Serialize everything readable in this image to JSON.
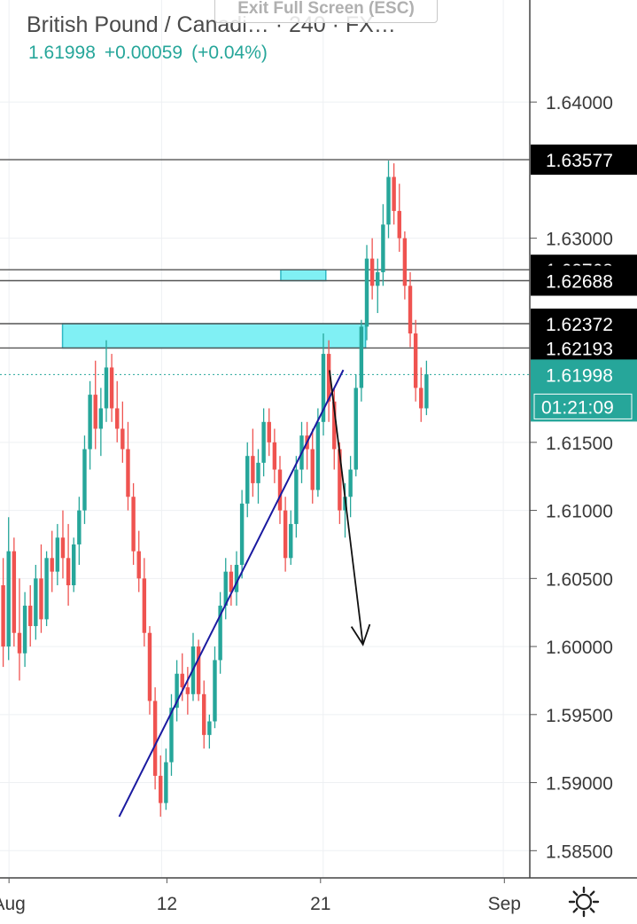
{
  "header": {
    "title": "British Pound / Canadi…  · 240 · FX…",
    "last_price": "1.61998",
    "change": "+0.00059",
    "change_pct": "(+0.04%)",
    "exit_fullscreen": "Exit Full Screen (ESC)"
  },
  "colors": {
    "up": "#26a69a",
    "down": "#ef5350",
    "zone": "#80f0f4",
    "trendline": "#1a1aa0",
    "hline": "#555555",
    "price_tag": "#000000",
    "current_tag": "#26a69a"
  },
  "icons": {
    "settings": "gear-icon"
  },
  "chart_data": {
    "type": "candlestick",
    "timeframe": "240",
    "price_axis": {
      "range": [
        1.583,
        1.6475
      ],
      "ticks": [
        "1.64000",
        "1.63000",
        "1.61500",
        "1.61000",
        "1.60500",
        "1.60000",
        "1.59500",
        "1.59000",
        "1.58500"
      ]
    },
    "time_axis": {
      "labels": [
        "Aug",
        "12",
        "21",
        "Sep"
      ]
    },
    "horizontal_lines": [
      {
        "price": 1.63577,
        "label": "1.63577"
      },
      {
        "price": 1.62768,
        "label": "1.62768"
      },
      {
        "price": 1.62688,
        "label": "1.62688"
      },
      {
        "price": 1.62372,
        "label": "1.62372"
      },
      {
        "price": 1.62193,
        "label": "1.62193"
      }
    ],
    "current_price": {
      "price": 1.61998,
      "label": "1.61998",
      "countdown": "01:21:09"
    },
    "zones": [
      {
        "x_start": 0.118,
        "x_end": 0.69,
        "top": 1.62372,
        "bottom": 1.62193
      },
      {
        "x_start": 0.53,
        "x_end": 0.615,
        "top": 1.62768,
        "bottom": 1.62688
      }
    ],
    "trendline": {
      "from": {
        "x": 0.225,
        "price": 1.5875
      },
      "to": {
        "x": 0.648,
        "price": 1.62032
      }
    },
    "arrow": {
      "from": {
        "x": 0.622,
        "price": 1.6203
      },
      "to": {
        "x": 0.685,
        "price": 1.60015
      }
    },
    "candles": [
      [
        1.6045,
        1.6065,
        1.5985,
        1.6
      ],
      [
        1.6,
        1.6095,
        1.599,
        1.607
      ],
      [
        1.607,
        1.608,
        1.6,
        1.601
      ],
      [
        1.601,
        1.605,
        1.5975,
        1.5995
      ],
      [
        1.5995,
        1.604,
        1.5985,
        1.603
      ],
      [
        1.603,
        1.6045,
        1.6,
        1.6015
      ],
      [
        1.6015,
        1.606,
        1.6005,
        1.605
      ],
      [
        1.605,
        1.6075,
        1.601,
        1.602
      ],
      [
        1.602,
        1.607,
        1.6015,
        1.6065
      ],
      [
        1.6065,
        1.6085,
        1.604,
        1.6055
      ],
      [
        1.6055,
        1.609,
        1.6045,
        1.608
      ],
      [
        1.608,
        1.61,
        1.605,
        1.6065
      ],
      [
        1.6065,
        1.609,
        1.603,
        1.6045
      ],
      [
        1.6045,
        1.608,
        1.604,
        1.6075
      ],
      [
        1.6075,
        1.611,
        1.606,
        1.61
      ],
      [
        1.61,
        1.6155,
        1.609,
        1.6145
      ],
      [
        1.6145,
        1.6195,
        1.613,
        1.6185
      ],
      [
        1.6185,
        1.621,
        1.6145,
        1.616
      ],
      [
        1.616,
        1.619,
        1.614,
        1.6175
      ],
      [
        1.6175,
        1.6225,
        1.6165,
        1.6205
      ],
      [
        1.6205,
        1.6215,
        1.6165,
        1.6175
      ],
      [
        1.6175,
        1.6195,
        1.615,
        1.616
      ],
      [
        1.616,
        1.618,
        1.6135,
        1.6145
      ],
      [
        1.6145,
        1.6165,
        1.61,
        1.611
      ],
      [
        1.611,
        1.612,
        1.606,
        1.607
      ],
      [
        1.607,
        1.6085,
        1.604,
        1.605
      ],
      [
        1.605,
        1.6065,
        1.6,
        1.601
      ],
      [
        1.601,
        1.6015,
        1.595,
        1.596
      ],
      [
        1.596,
        1.597,
        1.5895,
        1.5905
      ],
      [
        1.5905,
        1.592,
        1.5875,
        1.5885
      ],
      [
        1.5885,
        1.5925,
        1.588,
        1.5915
      ],
      [
        1.5915,
        1.5965,
        1.5905,
        1.5955
      ],
      [
        1.5955,
        1.599,
        1.5945,
        1.598
      ],
      [
        1.598,
        1.5995,
        1.596,
        1.597
      ],
      [
        1.597,
        1.5985,
        1.595,
        1.5965
      ],
      [
        1.5965,
        1.601,
        1.596,
        1.6
      ],
      [
        1.6,
        1.6005,
        1.596,
        1.5965
      ],
      [
        1.5965,
        1.5975,
        1.5925,
        1.5935
      ],
      [
        1.5935,
        1.595,
        1.5925,
        1.5945
      ],
      [
        1.5945,
        1.6,
        1.594,
        1.599
      ],
      [
        1.599,
        1.604,
        1.598,
        1.603
      ],
      [
        1.603,
        1.6065,
        1.602,
        1.6055
      ],
      [
        1.6055,
        1.606,
        1.603,
        1.604
      ],
      [
        1.604,
        1.607,
        1.603,
        1.606
      ],
      [
        1.606,
        1.6115,
        1.605,
        1.6105
      ],
      [
        1.6105,
        1.615,
        1.6095,
        1.614
      ],
      [
        1.614,
        1.616,
        1.611,
        1.612
      ],
      [
        1.612,
        1.6145,
        1.6105,
        1.6135
      ],
      [
        1.6135,
        1.6175,
        1.6125,
        1.6165
      ],
      [
        1.6165,
        1.6175,
        1.614,
        1.615
      ],
      [
        1.615,
        1.616,
        1.612,
        1.613
      ],
      [
        1.613,
        1.614,
        1.609,
        1.61
      ],
      [
        1.61,
        1.611,
        1.6055,
        1.6065
      ],
      [
        1.6065,
        1.61,
        1.606,
        1.609
      ],
      [
        1.609,
        1.614,
        1.608,
        1.613
      ],
      [
        1.613,
        1.6165,
        1.612,
        1.6155
      ],
      [
        1.6155,
        1.6165,
        1.613,
        1.6145
      ],
      [
        1.6145,
        1.616,
        1.6105,
        1.6115
      ],
      [
        1.6115,
        1.6175,
        1.611,
        1.6165
      ],
      [
        1.6165,
        1.623,
        1.6155,
        1.6215
      ],
      [
        1.6215,
        1.6225,
        1.6165,
        1.618
      ],
      [
        1.618,
        1.619,
        1.613,
        1.6145
      ],
      [
        1.6145,
        1.615,
        1.609,
        1.61
      ],
      [
        1.61,
        1.612,
        1.608,
        1.611
      ],
      [
        1.611,
        1.614,
        1.6095,
        1.613
      ],
      [
        1.613,
        1.62,
        1.6125,
        1.619
      ],
      [
        1.619,
        1.624,
        1.618,
        1.6235
      ],
      [
        1.6235,
        1.6295,
        1.6225,
        1.6285
      ],
      [
        1.6285,
        1.63,
        1.6255,
        1.6265
      ],
      [
        1.6265,
        1.6285,
        1.6245,
        1.6275
      ],
      [
        1.6275,
        1.6325,
        1.6265,
        1.631
      ],
      [
        1.631,
        1.6357,
        1.63,
        1.6345
      ],
      [
        1.6345,
        1.6355,
        1.631,
        1.632
      ],
      [
        1.632,
        1.634,
        1.629,
        1.63
      ],
      [
        1.63,
        1.6305,
        1.6255,
        1.6265
      ],
      [
        1.6265,
        1.6275,
        1.622,
        1.623
      ],
      [
        1.623,
        1.624,
        1.618,
        1.619
      ],
      [
        1.619,
        1.6205,
        1.6165,
        1.6175
      ],
      [
        1.6175,
        1.621,
        1.617,
        1.62
      ]
    ]
  }
}
